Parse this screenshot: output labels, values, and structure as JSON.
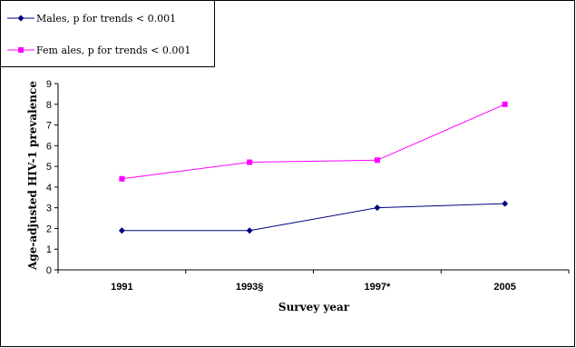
{
  "chart_data": {
    "type": "line",
    "categories": [
      "1991",
      "1993§",
      "1997*",
      "2005"
    ],
    "series": [
      {
        "name": "Males, p for trends < 0.001",
        "values": [
          1.9,
          1.9,
          3.0,
          3.2
        ],
        "color": "#000080",
        "marker": "diamond"
      },
      {
        "name": "Fem ales, p for trends < 0.001",
        "values": [
          4.4,
          5.2,
          5.3,
          8.0
        ],
        "color": "#FF00FF",
        "marker": "square"
      }
    ],
    "xlabel": "Survey year",
    "ylabel": "Age-adjusted HIV-1 prevalence",
    "ylim": [
      0,
      9
    ],
    "yticks": [
      "0",
      "1",
      "2",
      "3",
      "4",
      "5",
      "6",
      "7",
      "8",
      "9"
    ],
    "grid": false,
    "legend_position": "top-left"
  }
}
